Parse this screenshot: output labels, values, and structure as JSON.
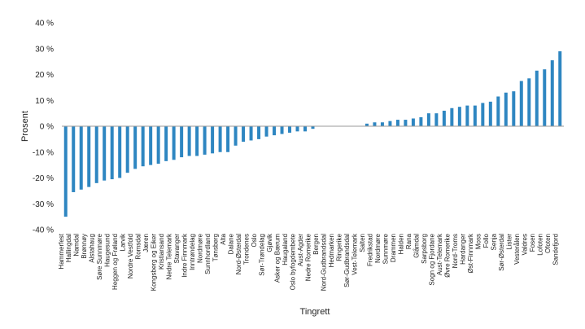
{
  "chart_data": {
    "type": "bar",
    "title": "",
    "xlabel": "Tingrett",
    "ylabel": "Prosent",
    "ylim": [
      -40,
      40
    ],
    "yticks": [
      -40,
      -30,
      -20,
      -10,
      0,
      10,
      20,
      30,
      40
    ],
    "ytick_labels": [
      "-40 %",
      "-30 %",
      "-20 %",
      "-10 %",
      "0 %",
      "10 %",
      "20 %",
      "30 %",
      "40 %"
    ],
    "grid": false,
    "legend": "none",
    "bar_color": "#2E86C1",
    "categories": [
      "Hammerfest",
      "Hallingdal",
      "Namdal",
      "Brønnøy",
      "Alstahaug",
      "Søre Sunnmøre",
      "Haugesund",
      "Heggen og Frøland",
      "Larvik",
      "Nordre Vestfold",
      "Romsdal",
      "Jæren",
      "Kongsberg og Eiker",
      "Kristiansand",
      "Nedre Telemark",
      "Stavanger",
      "Indre Finnmark",
      "Inntrøndelag",
      "Nordmøre",
      "Sunnhordland",
      "Tønsberg",
      "Alta",
      "Dalane",
      "Nord-Østerdal",
      "Trondenes",
      "Oslo",
      "Sør-Trøndelag",
      "Gjøvik",
      "Asker og Bærum",
      "Haugaland",
      "Oslo byfogdembete",
      "Aust-Agder",
      "Nedre Romerike",
      "Bergen",
      "Nord-Gudbrandsdal",
      "Hedmarken",
      "Ringerike",
      "Sør-Gudbrandsdal",
      "Vest-Telemark",
      "Salten",
      "Fredrikstad",
      "Nordmøre",
      "Sunnmøre",
      "Drammen",
      "Halden",
      "Rana",
      "Glåmdal",
      "Sarpsborg",
      "Sogn og Fjordane",
      "Aust-Telemark",
      "Øvre Romerike",
      "Nord-Troms",
      "Hardanger",
      "Øst-Finnmark",
      "Moss",
      "Follo",
      "Senja",
      "Sør-Østerdal",
      "Lister",
      "Vesterålen",
      "Valdres",
      "Fosen",
      "Lofoten",
      "Ofoten",
      "Sandefjord"
    ],
    "values": [
      -35,
      -25.5,
      -24.5,
      -23.5,
      -22,
      -21,
      -20.5,
      -20,
      -18,
      -16.5,
      -15.5,
      -15,
      -14.5,
      -13.5,
      -13,
      -12,
      -11.5,
      -11.5,
      -11,
      -10.5,
      -10,
      -10,
      -7.5,
      -6,
      -5.5,
      -5,
      -4,
      -3.5,
      -3,
      -2.5,
      -2,
      -2,
      -1,
      0,
      0,
      0,
      0,
      0,
      0,
      1,
      1.5,
      1.5,
      2,
      2.5,
      2.5,
      3,
      3.5,
      5,
      5,
      6,
      7,
      7.5,
      8,
      8,
      9,
      9.5,
      11.5,
      13,
      13.5,
      17.5,
      18.5,
      21.5,
      22,
      25.5,
      29
    ]
  }
}
